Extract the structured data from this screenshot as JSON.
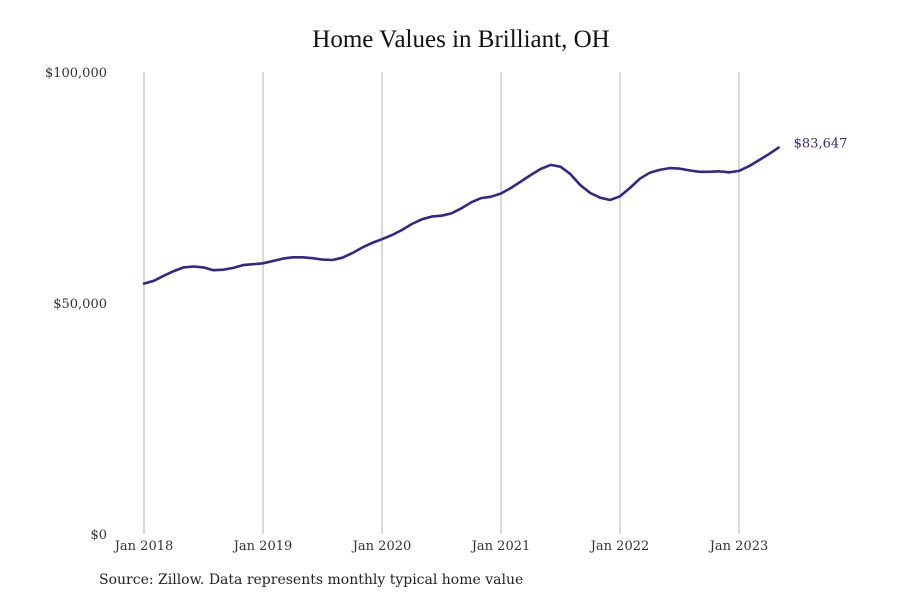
{
  "chart_data": {
    "type": "line",
    "title": "Home Values in Brilliant, OH",
    "xlabel": "",
    "ylabel": "",
    "ylim": [
      0,
      100000
    ],
    "y_ticks": [
      {
        "value": 0,
        "label": "$0"
      },
      {
        "value": 50000,
        "label": "$50,000"
      },
      {
        "value": 100000,
        "label": "$100,000"
      }
    ],
    "x_ticks": [
      {
        "value": 2018.0,
        "label": "Jan 2018"
      },
      {
        "value": 2019.0,
        "label": "Jan 2019"
      },
      {
        "value": 2020.0,
        "label": "Jan 2020"
      },
      {
        "value": 2021.0,
        "label": "Jan 2021"
      },
      {
        "value": 2022.0,
        "label": "Jan 2022"
      },
      {
        "value": 2023.0,
        "label": "Jan 2023"
      }
    ],
    "xlim": [
      2017.5,
      2024.0
    ],
    "grid": "vertical",
    "color": "#2e2a8c",
    "series": [
      {
        "end_label": "$83,647",
        "points": [
          [
            2018.0,
            54200
          ],
          [
            2018.083,
            54800
          ],
          [
            2018.167,
            55900
          ],
          [
            2018.25,
            56900
          ],
          [
            2018.333,
            57700
          ],
          [
            2018.417,
            57900
          ],
          [
            2018.5,
            57700
          ],
          [
            2018.583,
            57100
          ],
          [
            2018.667,
            57200
          ],
          [
            2018.75,
            57600
          ],
          [
            2018.833,
            58200
          ],
          [
            2018.917,
            58400
          ],
          [
            2019.0,
            58600
          ],
          [
            2019.083,
            59100
          ],
          [
            2019.167,
            59600
          ],
          [
            2019.25,
            59900
          ],
          [
            2019.333,
            59900
          ],
          [
            2019.417,
            59700
          ],
          [
            2019.5,
            59400
          ],
          [
            2019.583,
            59300
          ],
          [
            2019.667,
            59800
          ],
          [
            2019.75,
            60800
          ],
          [
            2019.833,
            62000
          ],
          [
            2019.917,
            63000
          ],
          [
            2020.0,
            63800
          ],
          [
            2020.083,
            64700
          ],
          [
            2020.167,
            65800
          ],
          [
            2020.25,
            67100
          ],
          [
            2020.333,
            68100
          ],
          [
            2020.417,
            68700
          ],
          [
            2020.5,
            68900
          ],
          [
            2020.583,
            69400
          ],
          [
            2020.667,
            70500
          ],
          [
            2020.75,
            71800
          ],
          [
            2020.833,
            72700
          ],
          [
            2020.917,
            73000
          ],
          [
            2021.0,
            73700
          ],
          [
            2021.083,
            74900
          ],
          [
            2021.167,
            76300
          ],
          [
            2021.25,
            77700
          ],
          [
            2021.333,
            79000
          ],
          [
            2021.417,
            79900
          ],
          [
            2021.5,
            79500
          ],
          [
            2021.583,
            77900
          ],
          [
            2021.667,
            75500
          ],
          [
            2021.75,
            73800
          ],
          [
            2021.833,
            72800
          ],
          [
            2021.917,
            72300
          ],
          [
            2022.0,
            73100
          ],
          [
            2022.083,
            74900
          ],
          [
            2022.167,
            76900
          ],
          [
            2022.25,
            78200
          ],
          [
            2022.333,
            78800
          ],
          [
            2022.417,
            79200
          ],
          [
            2022.5,
            79100
          ],
          [
            2022.583,
            78700
          ],
          [
            2022.667,
            78400
          ],
          [
            2022.75,
            78400
          ],
          [
            2022.833,
            78500
          ],
          [
            2022.917,
            78300
          ],
          [
            2023.0,
            78600
          ],
          [
            2023.083,
            79600
          ],
          [
            2023.167,
            80900
          ],
          [
            2023.25,
            82200
          ],
          [
            2023.333,
            83647
          ]
        ]
      }
    ]
  },
  "source_text": "Source: Zillow. Data represents monthly typical home value"
}
